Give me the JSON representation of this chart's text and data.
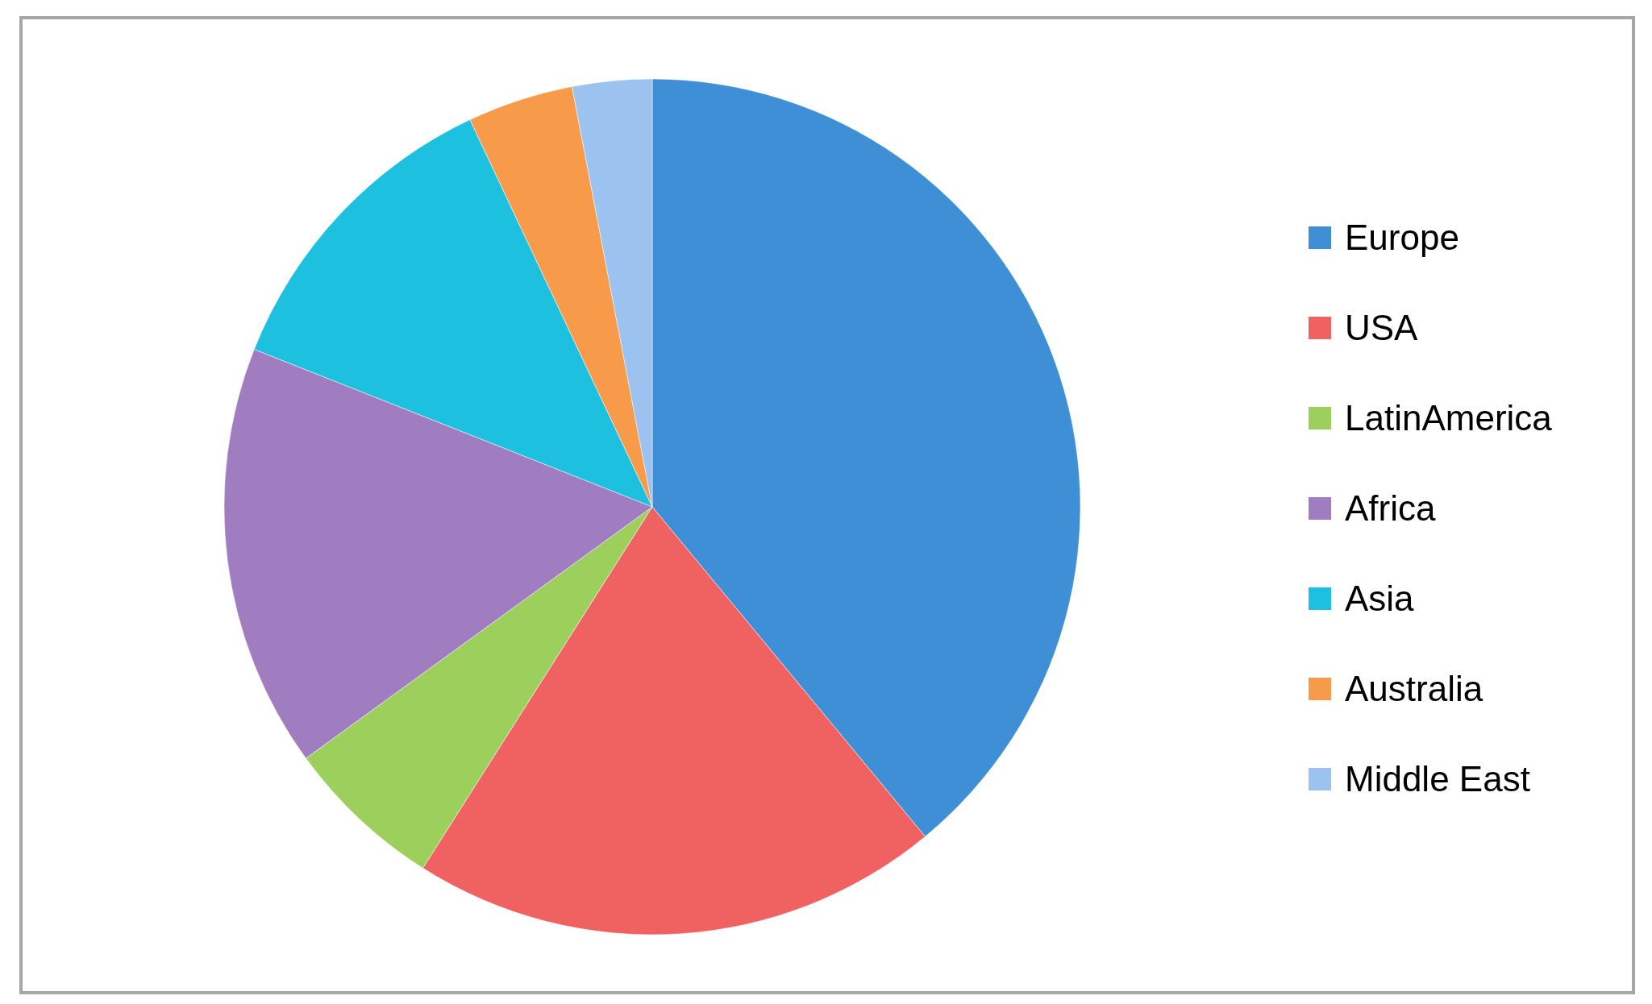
{
  "chart_data": {
    "type": "pie",
    "legend": "right",
    "categories": [
      "Europe",
      "USA",
      "LatinAmerica",
      "Africa",
      "Asia",
      "Australia",
      "Middle East"
    ],
    "values": [
      39,
      20,
      6,
      16,
      12,
      4,
      3
    ],
    "colors": [
      "#3f8fd6",
      "#f06262",
      "#9ccf5c",
      "#a07cc0",
      "#1ec0e0",
      "#f79a4a",
      "#9cc2ef"
    ]
  }
}
